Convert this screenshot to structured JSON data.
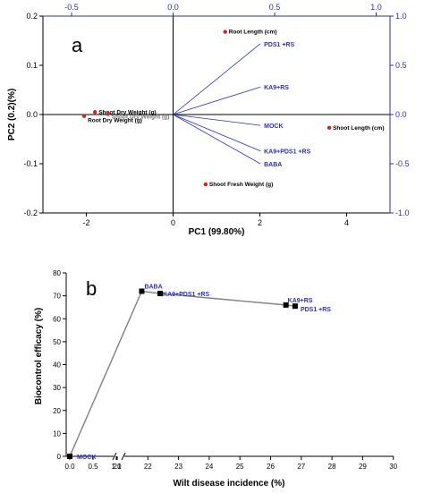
{
  "chart_data": [
    {
      "type": "biplot",
      "panel_label": "a",
      "title": "",
      "xlabel": "PC1 (99.80%)",
      "ylabel": "PC2 (0.2)(%)",
      "xlim": [
        -3,
        5
      ],
      "ylim": [
        -0.2,
        0.2
      ],
      "x_ticks": [
        "-2",
        "0",
        "2",
        "4"
      ],
      "y_ticks": [
        "-0.2",
        "-0.1",
        "0.0",
        "0.1",
        "0.2"
      ],
      "top_ticks": [
        "-0.5",
        "0.0",
        "0.5",
        "1.0"
      ],
      "right_ticks": [
        "-1.0",
        "-0.5",
        "0.0",
        "0.5",
        "1.0"
      ],
      "top_lim": [
        -0.6,
        1.0
      ],
      "right_lim": [
        -1.0,
        1.0
      ],
      "scores": [
        {
          "label": "Root Length (cm)",
          "x": 1.2,
          "y": 0.168
        },
        {
          "label": "Shoot Length (cm)",
          "x": 3.6,
          "y": -0.027
        },
        {
          "label": "Shoot Fresh Weight (g)",
          "x": 0.75,
          "y": -0.142
        },
        {
          "label": "Shoot Dry Weight (g)",
          "x": -1.8,
          "y": 0.005
        },
        {
          "label": "Root Dry Weight (g)",
          "x": -2.05,
          "y": -0.003
        },
        {
          "label": "Shoot Dry Weight (g)",
          "x": -1.5,
          "y": 0.001
        }
      ],
      "loadings": [
        {
          "label": "PDS1 +RS",
          "x": 0.43,
          "y": 0.72
        },
        {
          "label": "KA9+RS",
          "x": 0.43,
          "y": 0.28
        },
        {
          "label": "MOCK",
          "x": 0.43,
          "y": -0.11
        },
        {
          "label": "KA9+PDS1 +RS",
          "x": 0.43,
          "y": -0.37
        },
        {
          "label": "BABA",
          "x": 0.43,
          "y": -0.5
        }
      ],
      "colors": {
        "score": "#d22222",
        "loading": "#2b2fb8",
        "axis": "#000000",
        "secondary_axis": "#2b2fb8"
      }
    },
    {
      "type": "line",
      "panel_label": "b",
      "title": "",
      "xlabel": "Wilt disease incidence (%)",
      "ylabel": "Biocontrol efficacy (%)",
      "x_ticks": [
        "0.0",
        "0.5",
        "1.0",
        "21",
        "22",
        "23",
        "24",
        "25",
        "26",
        "27",
        "28",
        "29",
        "30"
      ],
      "y_ticks": [
        "0",
        "10",
        "20",
        "30",
        "40",
        "50",
        "60",
        "70",
        "80"
      ],
      "ylim": [
        0,
        80
      ],
      "x_break": "between 1.0 and 21",
      "points": [
        {
          "label": "MOCK",
          "x": 0.0,
          "y": 0
        },
        {
          "label": "BABA",
          "x": 21.8,
          "y": 72
        },
        {
          "label": "KA9+PDS1 +RS",
          "x": 22.4,
          "y": 71
        },
        {
          "label": "KA9+RS",
          "x": 26.5,
          "y": 66
        },
        {
          "label": "PDS1 +RS",
          "x": 26.8,
          "y": 65.5
        }
      ],
      "colors": {
        "marker": "#000000",
        "line": "#808080",
        "label": "#2b2fb8"
      }
    }
  ]
}
